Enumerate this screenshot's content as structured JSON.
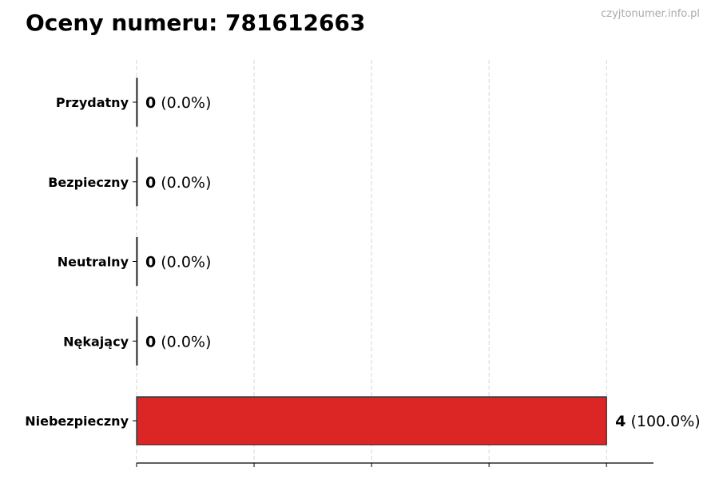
{
  "chart_data": {
    "type": "bar",
    "orientation": "horizontal",
    "title": "Oceny numeru: 781612663",
    "watermark": "czyjtonumer.info.pl",
    "categories": [
      "Przydatny",
      "Bezpieczny",
      "Neutralny",
      "Nękający",
      "Niebezpieczny"
    ],
    "values": [
      0,
      0,
      0,
      0,
      4
    ],
    "percent_labels": [
      "(0.0%)",
      "(0.0%)",
      "(0.0%)",
      "(0.0%)",
      "(100.0%)"
    ],
    "bar_colors": [
      "#2ca02c",
      "#2ca02c",
      "#999999",
      "#ff7f0e",
      "#dc2626"
    ],
    "xlim": [
      0,
      4.4
    ],
    "xticks": [
      0,
      1,
      2,
      3,
      4
    ],
    "xtick_labels_shown": false,
    "grid": "vertical dashed",
    "xlabel": "",
    "ylabel": ""
  }
}
